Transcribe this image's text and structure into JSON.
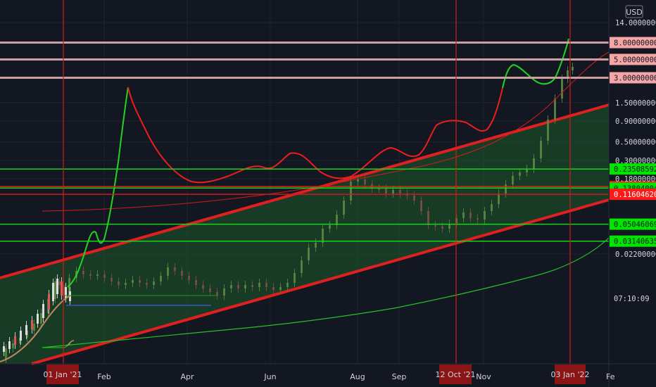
{
  "chart_data": {
    "type": "candlestick",
    "currency": "USD",
    "scale": "log",
    "ylim": [
      0.0185,
      14.0
    ],
    "x_ticks": [
      "Feb",
      "Apr",
      "Jun",
      "Aug",
      "Sep",
      "Nov"
    ],
    "x_ticks_partial": [
      "Fe"
    ],
    "x_highlight_labels": [
      "01 Jan '21",
      "12 Oct '21",
      "03 Jan '22"
    ],
    "y_ticks": [
      {
        "label": "14.00000000",
        "value": 14.0
      },
      {
        "label": "1.50000000",
        "value": 1.5
      },
      {
        "label": "0.90000000",
        "value": 0.9
      },
      {
        "label": "0.50000000",
        "value": 0.5
      },
      {
        "label": "0.30000000",
        "value": 0.3
      },
      {
        "label": "0.18000000",
        "value": 0.18
      },
      {
        "label": "0.02200000",
        "value": 0.022
      }
    ],
    "price_levels": [
      {
        "label": "8.00000000",
        "value": 8.0,
        "kind": "resistance",
        "color": "#f4a6a6",
        "line": "#c9a0a0"
      },
      {
        "label": "5.00000000",
        "value": 5.0,
        "kind": "resistance",
        "color": "#f4a6a6",
        "line": "#c9a0a0"
      },
      {
        "label": "3.00000000",
        "value": 3.0,
        "kind": "resistance",
        "color": "#f4a6a6",
        "line": "#c9a0a0"
      },
      {
        "label": "0.23508592",
        "value": 0.23508592,
        "kind": "support",
        "color": "#00e600",
        "line": "#19d319"
      },
      {
        "label": "0.14398685",
        "value": 0.14398685,
        "kind": "red",
        "color": "#ff1a1a",
        "line": "#e02020"
      },
      {
        "label": "0.13804004",
        "value": 0.13804004,
        "kind": "support",
        "color": "#00e600",
        "line": "#19d319"
      },
      {
        "label": "0.11604620",
        "value": 0.1160462,
        "kind": "red",
        "color": "#ff1a1a",
        "line": "#c81e1e"
      },
      {
        "label": "0.05046069",
        "value": 0.05046069,
        "kind": "support",
        "color": "#00e600",
        "line": "#19d319"
      },
      {
        "label": "0.03140635",
        "value": 0.03140635,
        "kind": "support",
        "color": "#00e600",
        "line": "#19d319"
      }
    ],
    "current_price_timer": "07:10:09",
    "colors": {
      "background": "#131722",
      "channel_line": "#e02020",
      "channel_fill": "#1e5a28",
      "green_curve": "#22d422",
      "red_curve": "#ee1d1d",
      "candles": "#6b8f55"
    }
  }
}
